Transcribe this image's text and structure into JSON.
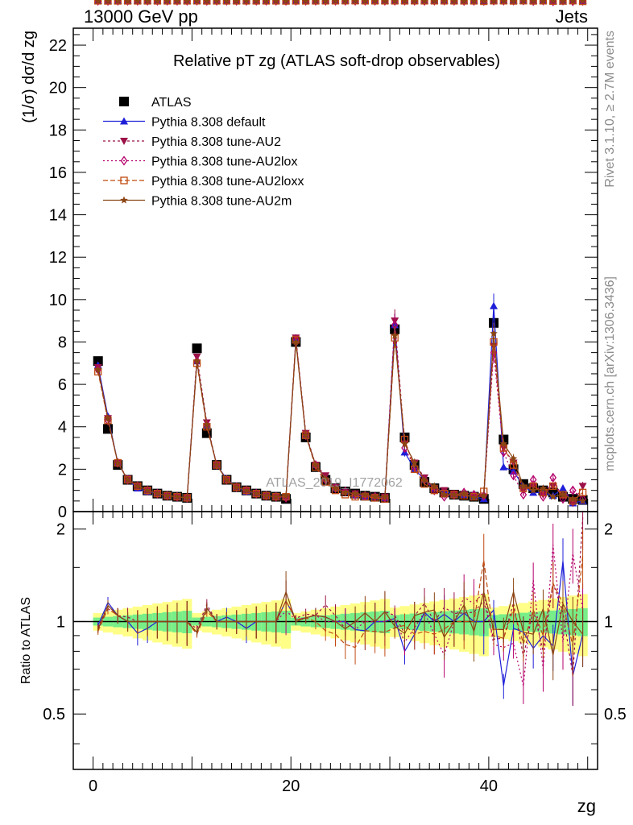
{
  "header": {
    "left": "13000 GeV pp",
    "right": "Jets"
  },
  "side_labels": {
    "rivet": "Rivet 3.1.10, ≥ 2.7M events",
    "mcplots": "mcplots.cern.ch [arXiv:1306.3436]"
  },
  "watermark": "ATLAS_2019_I1772062",
  "chart_data": [
    {
      "type": "scatter",
      "title": "Relative pT zg (ATLAS soft-drop observables)",
      "ylabel": "(1/σ) dσ/d zg",
      "xlabel": "zg",
      "xlim": [
        -2,
        51
      ],
      "ylim": [
        0,
        22.8
      ],
      "yticks": [
        0,
        2,
        4,
        6,
        8,
        10,
        12,
        14,
        16,
        18,
        20,
        22
      ],
      "xticks": [
        0,
        20,
        40
      ],
      "legend_position": "top-left",
      "x": [
        0.5,
        1.5,
        2.5,
        3.5,
        4.5,
        5.5,
        6.5,
        7.5,
        8.5,
        9.5,
        10.5,
        11.5,
        12.5,
        13.5,
        14.5,
        15.5,
        16.5,
        17.5,
        18.5,
        19.5,
        20.5,
        21.5,
        22.5,
        23.5,
        24.5,
        25.5,
        26.5,
        27.5,
        28.5,
        29.5,
        30.5,
        31.5,
        32.5,
        33.5,
        34.5,
        35.5,
        36.5,
        37.5,
        38.5,
        39.5,
        40.5,
        41.5,
        42.5,
        43.5,
        44.5,
        45.5,
        46.5,
        47.5,
        48.5,
        49.5
      ],
      "series": [
        {
          "name": "ATLAS",
          "color": "#000000",
          "marker": "square-filled",
          "values": [
            7.1,
            3.9,
            2.2,
            1.5,
            1.2,
            1.0,
            0.85,
            0.75,
            0.7,
            0.65,
            7.7,
            3.7,
            2.2,
            1.5,
            1.15,
            1.0,
            0.85,
            0.75,
            0.7,
            0.6,
            8.0,
            3.5,
            2.1,
            1.5,
            1.1,
            0.95,
            0.85,
            0.75,
            0.7,
            0.65,
            8.6,
            3.5,
            2.2,
            1.4,
            1.1,
            0.9,
            0.8,
            0.75,
            0.7,
            0.6,
            8.9,
            3.4,
            2.0,
            1.3,
            1.1,
            1.0,
            0.9,
            0.7,
            0.6,
            0.55
          ]
        },
        {
          "name": "Pythia 8.308 default",
          "color": "#1f1fd9",
          "marker": "triangle-up-filled",
          "values": [
            6.9,
            4.5,
            2.3,
            1.5,
            1.1,
            0.95,
            0.85,
            0.75,
            0.7,
            0.65,
            7.1,
            4.1,
            2.2,
            1.55,
            1.15,
            0.95,
            0.85,
            0.75,
            0.7,
            0.7,
            8.1,
            3.6,
            2.2,
            1.55,
            1.1,
            0.95,
            0.8,
            0.7,
            0.7,
            0.65,
            8.8,
            2.8,
            2.0,
            1.5,
            1.1,
            0.95,
            0.8,
            0.8,
            0.7,
            0.6,
            9.7,
            2.1,
            1.9,
            1.2,
            0.9,
            0.9,
            0.75,
            1.1,
            0.4,
            0.5
          ]
        },
        {
          "name": "Pythia 8.308 tune-AU2",
          "color": "#9c1147",
          "marker": "triangle-down-filled",
          "dash": "3,3",
          "values": [
            6.8,
            4.4,
            2.3,
            1.55,
            1.2,
            1.0,
            0.85,
            0.75,
            0.7,
            0.65,
            7.3,
            4.2,
            2.2,
            1.5,
            1.15,
            1.0,
            0.85,
            0.75,
            0.7,
            0.7,
            8.2,
            3.7,
            2.2,
            1.7,
            1.15,
            0.9,
            0.85,
            0.75,
            0.7,
            0.7,
            9.0,
            3.2,
            2.3,
            1.6,
            1.1,
            1.0,
            0.85,
            0.8,
            0.75,
            0.7,
            7.8,
            3.0,
            2.3,
            1.0,
            1.2,
            0.8,
            1.2,
            0.75,
            0.4,
            1.2
          ]
        },
        {
          "name": "Pythia 8.308 tune-AU2lox",
          "color": "#b5006b",
          "marker": "diamond-open",
          "dash": "2,3",
          "values": [
            6.7,
            4.3,
            2.3,
            1.5,
            1.2,
            1.0,
            0.85,
            0.75,
            0.7,
            0.65,
            7.1,
            4.1,
            2.2,
            1.5,
            1.15,
            1.0,
            0.85,
            0.75,
            0.7,
            0.65,
            8.1,
            3.6,
            2.2,
            1.5,
            1.1,
            0.95,
            0.8,
            0.75,
            0.7,
            0.65,
            8.8,
            3.0,
            2.1,
            1.5,
            1.0,
            0.7,
            0.8,
            0.9,
            0.8,
            0.75,
            7.5,
            2.8,
            1.7,
            0.8,
            1.5,
            0.7,
            1.6,
            0.6,
            1.0,
            0.6
          ]
        },
        {
          "name": "Pythia 8.308 tune-AU2loxx",
          "color": "#c04a11",
          "marker": "square-open",
          "dash": "6,3",
          "values": [
            6.6,
            4.3,
            2.3,
            1.5,
            1.2,
            1.0,
            0.85,
            0.75,
            0.7,
            0.65,
            7.0,
            4.0,
            2.2,
            1.5,
            1.15,
            1.0,
            0.85,
            0.75,
            0.7,
            0.7,
            8.1,
            3.6,
            2.1,
            1.4,
            1.0,
            0.8,
            0.7,
            0.7,
            0.65,
            0.6,
            8.2,
            3.4,
            2.0,
            1.3,
            1.0,
            0.85,
            0.8,
            0.75,
            0.7,
            0.95,
            8.0,
            3.0,
            2.2,
            1.1,
            1.2,
            0.9,
            1.2,
            0.8,
            0.5,
            0.9
          ]
        },
        {
          "name": "Pythia 8.308 tune-AU2m",
          "color": "#8b4513",
          "marker": "star-filled",
          "values": [
            6.7,
            4.4,
            2.3,
            1.5,
            1.2,
            1.0,
            0.85,
            0.75,
            0.7,
            0.65,
            7.1,
            4.1,
            2.2,
            1.5,
            1.15,
            1.0,
            0.85,
            0.75,
            0.7,
            0.75,
            8.0,
            3.6,
            2.2,
            1.55,
            1.1,
            0.9,
            0.85,
            0.8,
            0.7,
            0.7,
            8.3,
            3.2,
            2.3,
            1.5,
            1.2,
            0.8,
            0.8,
            0.85,
            0.65,
            0.75,
            8.4,
            3.2,
            2.5,
            1.2,
            1.0,
            1.1,
            0.7,
            0.8,
            0.6,
            0.5
          ]
        }
      ]
    },
    {
      "type": "scatter",
      "ylabel": "Ratio to ATLAS",
      "xlabel": "zg",
      "xlim": [
        -2,
        51
      ],
      "ylim": [
        0.33,
        2.28
      ],
      "yticks": [
        0.5,
        1,
        2
      ],
      "xticks": [
        0,
        20,
        40
      ],
      "reference_line": 1,
      "bands": {
        "inner_color": "#77ee88",
        "outer_color": "#ffff88"
      }
    }
  ]
}
